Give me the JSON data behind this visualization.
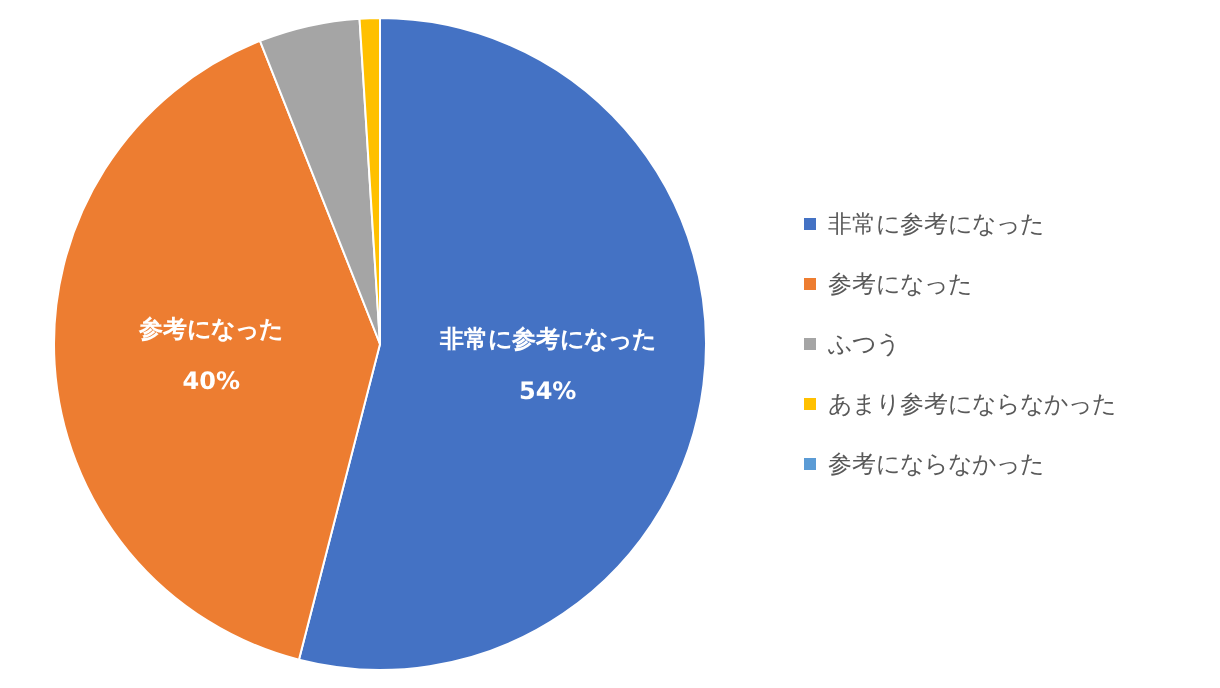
{
  "chart_data": {
    "type": "pie",
    "categories": [
      "非常に参考になった",
      "参考になった",
      "ふつう",
      "あまり参考にならなかった",
      "参考にならなかった"
    ],
    "values": [
      54,
      40,
      5,
      1,
      0
    ],
    "colors": [
      "#4472c4",
      "#ed7d31",
      "#a5a5a5",
      "#ffc000",
      "#5b9bd5"
    ],
    "value_labels": [
      "54%",
      "40%",
      null,
      null,
      null
    ],
    "legend": "right"
  }
}
